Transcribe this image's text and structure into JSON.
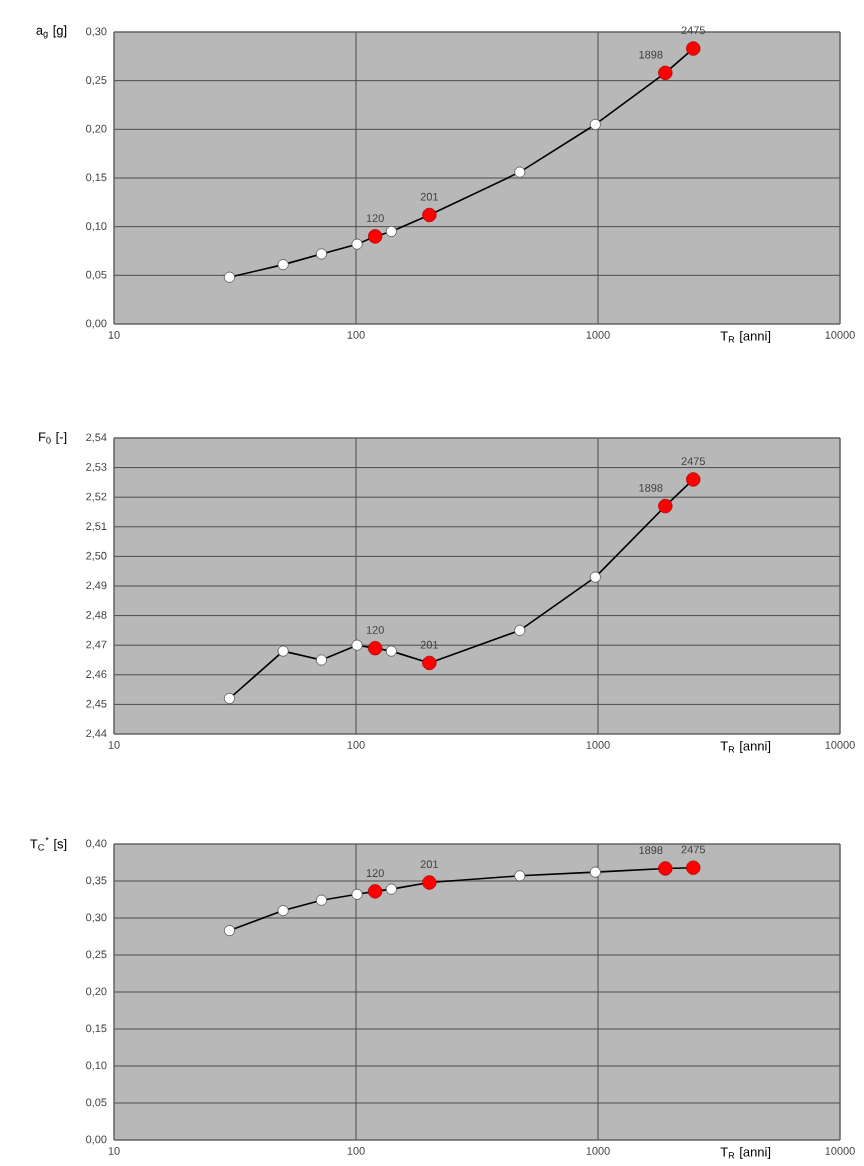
{
  "chart_data": [
    {
      "type": "line",
      "ylabel": "a$_{g}$ [g]",
      "xlabel": "T$_{R}$ [anni]",
      "log": "x",
      "grid": true,
      "x": [
        30,
        50,
        72,
        101,
        120,
        140,
        201,
        475,
        975,
        1898,
        2475
      ],
      "series": [
        {
          "type": "line",
          "color": "#000000",
          "marker": "circle",
          "values": [
            0.048,
            0.061,
            0.072,
            0.082,
            0.09,
            0.095,
            0.112,
            0.156,
            0.205,
            0.258,
            0.283
          ]
        },
        {
          "type": "scatter",
          "color": "#ff0000",
          "marker": "circle",
          "x": [
            120,
            201,
            1898,
            2475
          ],
          "values": [
            0.09,
            0.112,
            0.258,
            0.283
          ]
        }
      ],
      "xlim": [
        10,
        10000
      ],
      "xticks": [
        10,
        100,
        1000,
        10000
      ],
      "ylim": [
        0,
        0.3
      ],
      "yticks": [
        {
          "value": 0,
          "label": "0,00"
        },
        {
          "value": 0.05,
          "label": "0,05"
        },
        {
          "value": 0.1,
          "label": "0,10"
        },
        {
          "value": 0.15,
          "label": "0,15"
        },
        {
          "value": 0.2,
          "label": "0,20"
        },
        {
          "value": 0.25,
          "label": "0,25"
        },
        {
          "value": 0.3,
          "label": "0,30"
        }
      ],
      "annotations": [
        {
          "text": "120",
          "x": 120,
          "y": 0.09
        },
        {
          "text": "201",
          "x": 201,
          "y": 0.112
        },
        {
          "text": "1898",
          "x": 1898,
          "y": 0.258
        },
        {
          "text": "2475",
          "x": 2475,
          "y": 0.283
        }
      ]
    },
    {
      "type": "line",
      "ylabel": "F$_{0}$ [-]",
      "xlabel": "T$_{R}$ [anni]",
      "log": "x",
      "grid": true,
      "x": [
        30,
        50,
        72,
        101,
        120,
        140,
        201,
        475,
        975,
        1898,
        2475
      ],
      "series": [
        {
          "type": "line",
          "color": "#000000",
          "marker": "circle",
          "values": [
            2.452,
            2.468,
            2.465,
            2.47,
            2.469,
            2.468,
            2.464,
            2.475,
            2.493,
            2.517,
            2.526
          ]
        },
        {
          "type": "scatter",
          "color": "#ff0000",
          "marker": "circle",
          "x": [
            120,
            201,
            1898,
            2475
          ],
          "values": [
            2.469,
            2.464,
            2.517,
            2.526
          ]
        }
      ],
      "xlim": [
        10,
        10000
      ],
      "xticks": [
        10,
        100,
        1000,
        10000
      ],
      "ylim": [
        2.44,
        2.54
      ],
      "yticks": [
        {
          "value": 2.44,
          "label": "2,44"
        },
        {
          "value": 2.45,
          "label": "2,45"
        },
        {
          "value": 2.46,
          "label": "2,46"
        },
        {
          "value": 2.47,
          "label": "2,47"
        },
        {
          "value": 2.48,
          "label": "2,48"
        },
        {
          "value": 2.49,
          "label": "2,49"
        },
        {
          "value": 2.5,
          "label": "2,50"
        },
        {
          "value": 2.51,
          "label": "2,51"
        },
        {
          "value": 2.52,
          "label": "2,52"
        },
        {
          "value": 2.53,
          "label": "2,53"
        },
        {
          "value": 2.54,
          "label": "2,54"
        }
      ],
      "annotations": [
        {
          "text": "120",
          "x": 120,
          "y": 2.469
        },
        {
          "text": "201",
          "x": 201,
          "y": 2.464
        },
        {
          "text": "1898",
          "x": 1898,
          "y": 2.517
        },
        {
          "text": "2475",
          "x": 2475,
          "y": 2.526
        }
      ]
    },
    {
      "type": "line",
      "ylabel": "T$_{C}$$^{*}$ [s]",
      "xlabel": "T$_{R}$ [anni]",
      "log": "x",
      "grid": true,
      "x": [
        30,
        50,
        72,
        101,
        120,
        140,
        201,
        475,
        975,
        1898,
        2475
      ],
      "series": [
        {
          "type": "line",
          "color": "#000000",
          "marker": "circle",
          "values": [
            0.283,
            0.31,
            0.324,
            0.332,
            0.336,
            0.339,
            0.348,
            0.357,
            0.362,
            0.367,
            0.368
          ]
        },
        {
          "type": "scatter",
          "color": "#ff0000",
          "marker": "circle",
          "x": [
            120,
            201,
            1898,
            2475
          ],
          "values": [
            0.336,
            0.348,
            0.367,
            0.368
          ]
        }
      ],
      "xlim": [
        10,
        10000
      ],
      "xticks": [
        10,
        100,
        1000,
        10000
      ],
      "ylim": [
        0,
        0.4
      ],
      "yticks": [
        {
          "value": 0,
          "label": "0,00"
        },
        {
          "value": 0.05,
          "label": "0,05"
        },
        {
          "value": 0.1,
          "label": "0,10"
        },
        {
          "value": 0.15,
          "label": "0,15"
        },
        {
          "value": 0.2,
          "label": "0,20"
        },
        {
          "value": 0.25,
          "label": "0,25"
        },
        {
          "value": 0.3,
          "label": "0,30"
        },
        {
          "value": 0.35,
          "label": "0,35"
        },
        {
          "value": 0.4,
          "label": "0,40"
        }
      ],
      "annotations": [
        {
          "text": "120",
          "x": 120,
          "y": 0.336
        },
        {
          "text": "201",
          "x": 201,
          "y": 0.348
        },
        {
          "text": "1898",
          "x": 1898,
          "y": 0.367
        },
        {
          "text": "2475",
          "x": 2475,
          "y": 0.368
        }
      ]
    }
  ]
}
